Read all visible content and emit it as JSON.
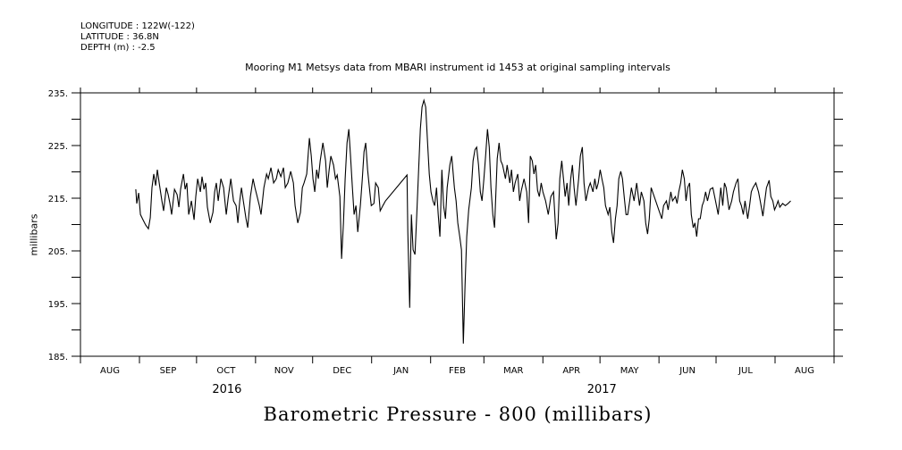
{
  "header": {
    "longitude": "LONGITUDE : 122W(-122)",
    "latitude": "LATITUDE : 36.8N",
    "depth": "DEPTH (m) : -2.5"
  },
  "chart_data": {
    "type": "line",
    "title": "Mooring M1 Metsys data from MBARI instrument id 1453 at original sampling intervals",
    "xlabel": "Barometric Pressure - 800 (millibars)",
    "ylabel": "millibars",
    "x_units": "days since 2016-08-01",
    "xlim": [
      0,
      396
    ],
    "ylim": [
      185,
      235
    ],
    "y_ticks": [
      "185.",
      "195.",
      "205.",
      "215.",
      "225.",
      "235."
    ],
    "y_tick_values": [
      185,
      195,
      205,
      215,
      225,
      235
    ],
    "month_boundaries": [
      0,
      31,
      61,
      92,
      122,
      153,
      184,
      212,
      243,
      273,
      304,
      334,
      365,
      396
    ],
    "month_labels": [
      "AUG",
      "SEP",
      "OCT",
      "NOV",
      "DEC",
      "JAN",
      "FEB",
      "MAR",
      "APR",
      "MAY",
      "JUN",
      "JUL",
      "AUG"
    ],
    "year_labels": [
      {
        "label": "2016",
        "day": 77
      },
      {
        "label": "2017",
        "day": 274
      }
    ],
    "grid": false,
    "series": [
      {
        "name": "Barometric Pressure - 800",
        "color": "#000000",
        "x": [
          29.1,
          29.6,
          30.6,
          31.5,
          32.9,
          34.3,
          35.7,
          36.7,
          37.6,
          38.5,
          39.5,
          40.4,
          41.4,
          42.8,
          43.7,
          45.1,
          46.1,
          47.0,
          47.9,
          49.4,
          50.8,
          51.7,
          52.6,
          54.1,
          55.0,
          55.9,
          56.9,
          58.3,
          59.7,
          60.6,
          61.6,
          63.0,
          63.9,
          64.9,
          65.8,
          66.7,
          68.2,
          69.6,
          70.5,
          71.4,
          72.4,
          73.8,
          75.2,
          76.6,
          77.6,
          79.0,
          80.4,
          81.8,
          82.7,
          83.7,
          84.6,
          85.5,
          87.0,
          87.9,
          89.3,
          90.7,
          91.7,
          92.6,
          94.0,
          94.9,
          96.4,
          97.8,
          98.7,
          100.1,
          101.5,
          102.9,
          103.9,
          105.3,
          106.7,
          107.6,
          109.0,
          110.5,
          111.9,
          112.8,
          114.2,
          115.6,
          116.6,
          117.5,
          118.9,
          120.3,
          121.3,
          122.2,
          123.1,
          124.1,
          125.0,
          126.0,
          127.4,
          128.8,
          129.7,
          130.7,
          131.6,
          133.0,
          134.0,
          134.9,
          136.3,
          137.2,
          138.2,
          139.1,
          140.1,
          141.0,
          141.9,
          142.9,
          143.8,
          144.8,
          145.7,
          147.1,
          148.1,
          149.0,
          149.9,
          150.9,
          151.8,
          152.8,
          154.2,
          155.1,
          156.5,
          157.5,
          158.9,
          160.3,
          171.6,
          172.0,
          173.0,
          173.9,
          174.8,
          175.8,
          176.7,
          177.7,
          178.6,
          179.5,
          180.5,
          181.4,
          182.4,
          183.3,
          184.2,
          185.2,
          186.1,
          187.1,
          188.0,
          188.9,
          189.9,
          190.8,
          191.8,
          192.7,
          194.1,
          195.1,
          196.5,
          197.4,
          198.3,
          199.3,
          200.2,
          201.2,
          202.1,
          203.0,
          204.0,
          205.4,
          206.3,
          207.3,
          208.2,
          209.2,
          210.1,
          211.0,
          212.0,
          212.9,
          213.9,
          214.8,
          215.7,
          216.7,
          217.6,
          219.0,
          220.0,
          220.9,
          221.8,
          223.3,
          224.2,
          225.6,
          226.5,
          227.5,
          228.4,
          229.8,
          230.8,
          231.7,
          233.1,
          234.5,
          235.5,
          236.4,
          237.4,
          238.3,
          239.2,
          240.2,
          241.1,
          242.1,
          243.0,
          244.4,
          245.8,
          247.2,
          248.6,
          250.0,
          251.0,
          251.9,
          252.9,
          253.8,
          254.7,
          255.7,
          256.6,
          257.6,
          258.5,
          259.4,
          260.4,
          261.8,
          262.7,
          263.7,
          264.6,
          265.6,
          267.0,
          267.9,
          269.3,
          270.3,
          271.2,
          272.1,
          273.1,
          274.0,
          275.0,
          275.9,
          277.3,
          278.2,
          279.2,
          280.1,
          281.1,
          282.0,
          282.9,
          283.9,
          284.8,
          285.8,
          286.7,
          287.6,
          288.6,
          289.5,
          290.9,
          292.3,
          293.8,
          294.7,
          296.1,
          297.0,
          298.0,
          298.9,
          299.9,
          305.5,
          306.4,
          307.9,
          308.8,
          310.2,
          311.1,
          312.6,
          313.5,
          314.4,
          315.4,
          316.3,
          317.3,
          318.2,
          319.1,
          320.1,
          321.0,
          322.0,
          322.9,
          323.8,
          324.8,
          325.7,
          326.7,
          327.6,
          328.5,
          329.5,
          330.9,
          332.3,
          333.7,
          335.1,
          336.5,
          337.5,
          338.4,
          339.3,
          340.8,
          342.2,
          343.1,
          344.5,
          345.5,
          346.4,
          347.3,
          348.3,
          349.2,
          350.6,
          351.6,
          352.5,
          353.4,
          354.9,
          356.3,
          357.2,
          358.6,
          359.6,
          360.5,
          361.9,
          362.8,
          363.8,
          364.7,
          365.7,
          366.6,
          367.5,
          369.0,
          370.4,
          371.8,
          373.2
        ],
        "y": [
          216.7,
          214.0,
          216.0,
          211.9,
          210.9,
          209.9,
          209.2,
          211.3,
          217.0,
          219.6,
          217.4,
          220.4,
          217.9,
          214.5,
          212.6,
          217.0,
          215.7,
          214.0,
          211.9,
          216.7,
          215.7,
          213.3,
          216.7,
          219.6,
          216.7,
          217.9,
          211.9,
          214.5,
          210.9,
          215.3,
          218.7,
          216.2,
          219.1,
          216.7,
          217.9,
          213.3,
          210.3,
          212.3,
          216.2,
          217.9,
          214.5,
          218.7,
          217.0,
          211.9,
          215.0,
          218.7,
          214.5,
          213.6,
          210.3,
          214.5,
          217.0,
          214.7,
          211.1,
          209.4,
          215.3,
          218.7,
          217.0,
          215.7,
          213.6,
          211.9,
          217.0,
          219.6,
          218.7,
          220.8,
          217.9,
          218.7,
          220.4,
          219.1,
          220.8,
          217.0,
          217.9,
          220.1,
          217.9,
          213.6,
          210.3,
          212.3,
          217.0,
          217.9,
          219.6,
          226.4,
          223.0,
          218.7,
          216.2,
          220.4,
          218.7,
          222.1,
          225.5,
          222.1,
          217.0,
          220.4,
          223.0,
          221.3,
          218.7,
          219.4,
          215.3,
          203.5,
          210.3,
          218.7,
          225.5,
          228.1,
          223.0,
          217.0,
          211.9,
          213.6,
          208.6,
          213.6,
          218.7,
          223.8,
          225.5,
          220.4,
          217.0,
          213.6,
          214.0,
          217.9,
          217.0,
          212.6,
          213.6,
          214.5,
          219.4,
          208.6,
          194.2,
          211.9,
          205.2,
          204.3,
          211.9,
          220.4,
          228.1,
          232.3,
          233.6,
          232.3,
          225.5,
          219.6,
          216.2,
          214.5,
          213.6,
          217.0,
          211.9,
          207.7,
          220.4,
          213.6,
          211.1,
          217.0,
          221.3,
          223.0,
          217.0,
          214.5,
          210.3,
          207.7,
          205.2,
          187.4,
          198.4,
          207.7,
          212.8,
          217.0,
          222.1,
          224.2,
          224.7,
          221.3,
          216.2,
          214.5,
          218.7,
          223.0,
          228.1,
          224.7,
          217.0,
          211.9,
          209.4,
          222.5,
          225.5,
          222.1,
          221.3,
          218.7,
          221.3,
          217.9,
          220.4,
          216.2,
          217.9,
          219.6,
          214.5,
          216.5,
          218.7,
          216.2,
          210.3,
          223.0,
          222.1,
          219.6,
          221.3,
          216.5,
          215.3,
          217.9,
          216.2,
          214.5,
          211.9,
          215.3,
          216.2,
          207.2,
          210.3,
          218.7,
          222.1,
          218.7,
          215.3,
          217.9,
          213.6,
          218.7,
          221.3,
          217.0,
          213.6,
          218.7,
          223.0,
          224.7,
          217.9,
          214.5,
          217.0,
          217.9,
          216.2,
          218.7,
          216.7,
          217.9,
          220.4,
          218.7,
          217.0,
          213.6,
          211.9,
          213.3,
          208.6,
          206.5,
          211.1,
          213.6,
          218.7,
          220.1,
          218.7,
          215.0,
          211.9,
          211.9,
          214.5,
          217.0,
          214.5,
          217.9,
          213.6,
          216.2,
          214.5,
          210.3,
          208.2,
          211.1,
          217.0,
          211.1,
          213.6,
          214.5,
          212.8,
          216.2,
          214.5,
          215.3,
          214.0,
          216.2,
          217.9,
          220.4,
          218.7,
          214.5,
          217.0,
          217.9,
          211.9,
          209.4,
          210.3,
          207.7,
          211.1,
          211.1,
          213.6,
          214.5,
          216.2,
          214.5,
          216.7,
          217.0,
          214.5,
          211.9,
          217.0,
          213.6,
          217.9,
          217.0,
          212.8,
          214.5,
          216.2,
          217.9,
          218.7,
          214.5,
          213.6,
          211.9,
          214.5,
          211.1,
          213.6,
          216.2,
          217.0,
          217.9,
          216.2,
          214.5,
          211.6,
          214.5,
          217.0,
          218.4,
          215.3,
          214.5,
          212.8,
          213.6,
          214.5,
          213.3,
          214.0,
          213.6,
          214.0,
          214.5
        ]
      }
    ]
  }
}
